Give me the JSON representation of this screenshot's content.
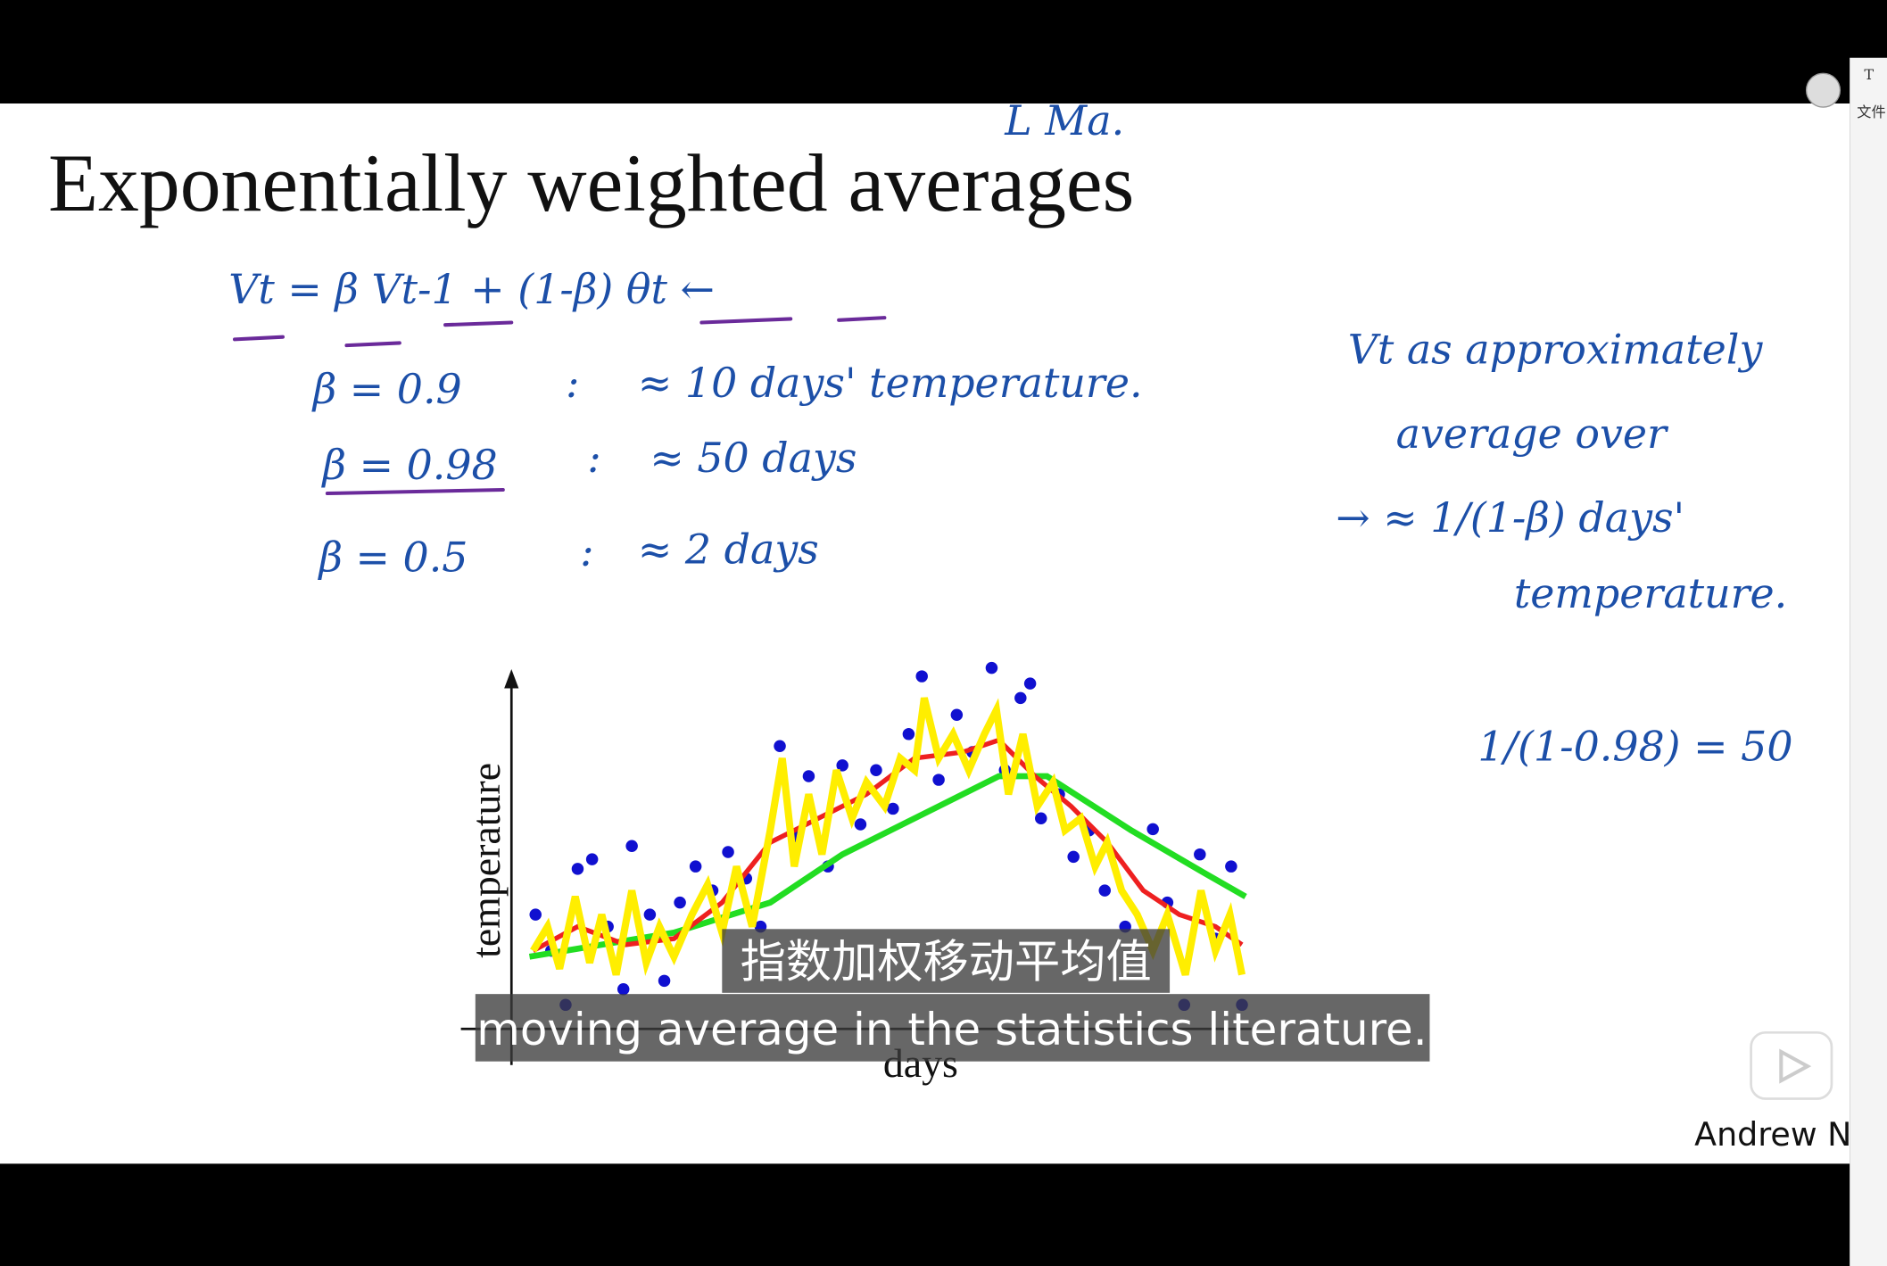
{
  "header": {
    "title": "Exponentially weighted averages",
    "scribble": "L Ma."
  },
  "slide": {
    "formula": "Vt = β Vt-1 + (1-β) θt ←",
    "rows": [
      {
        "beta": "β = 0.9",
        "sep": ":",
        "note": "≈ 10 days' temperature."
      },
      {
        "beta": "β = 0.98",
        "sep": ":",
        "note": "≈ 50 days"
      },
      {
        "beta": "β = 0.5",
        "sep": ":",
        "note": "≈ 2 days"
      }
    ],
    "right_notes": [
      "Vt as approximately",
      "average over",
      "→ ≈ 1/(1-β) days'",
      "temperature."
    ],
    "calc": "1/(1-0.98) = 50",
    "plot": {
      "y_label": "temperature",
      "x_label": "days"
    }
  },
  "subtitles": {
    "zh": "指数加权移动平均值",
    "en": "moving average in the statistics literature."
  },
  "presenter": "Andrew N",
  "side_panel": {
    "icon": "T",
    "label": "文件"
  }
}
